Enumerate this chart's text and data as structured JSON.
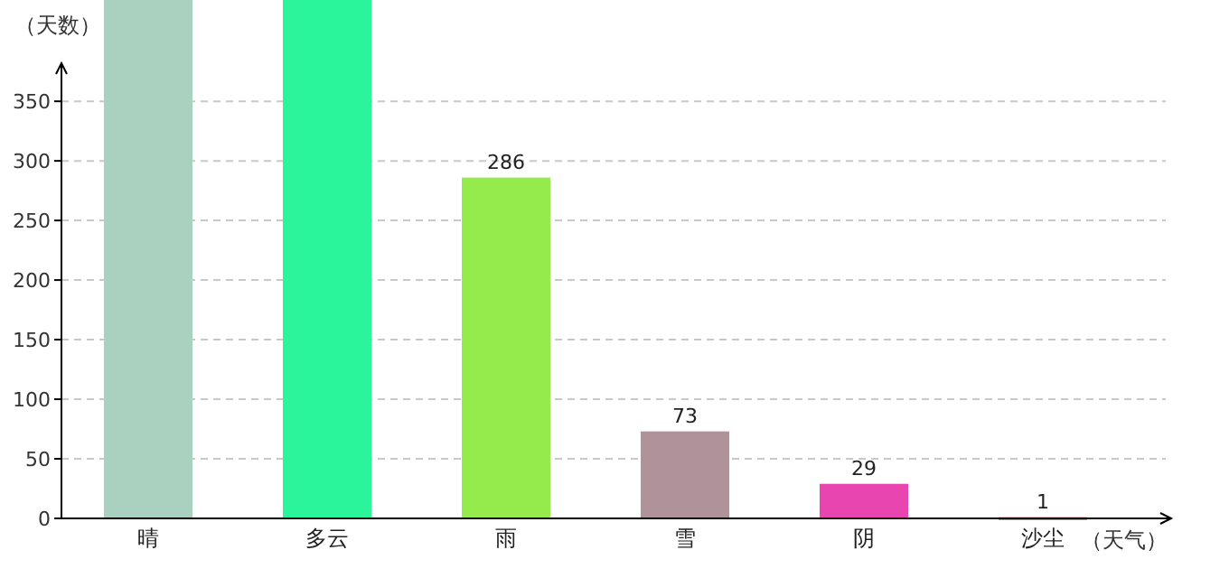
{
  "chart_data": {
    "type": "bar",
    "ylabel": "（天数）",
    "xlabel": "（天气）",
    "categories": [
      "晴",
      "多云",
      "雨",
      "雪",
      "阴",
      "沙尘"
    ],
    "values": [
      435,
      435,
      286,
      73,
      29,
      1
    ],
    "colors": [
      "#aad0c0",
      "#2af59a",
      "#96eb4c",
      "#b0929a",
      "#e845b0",
      "#d05030"
    ],
    "value_labels": [
      null,
      null,
      "286",
      "73",
      "29",
      "1"
    ],
    "ylim": [
      0,
      435
    ],
    "yticks": [
      0,
      50,
      100,
      150,
      200,
      250,
      300,
      350
    ],
    "grid": "y"
  }
}
